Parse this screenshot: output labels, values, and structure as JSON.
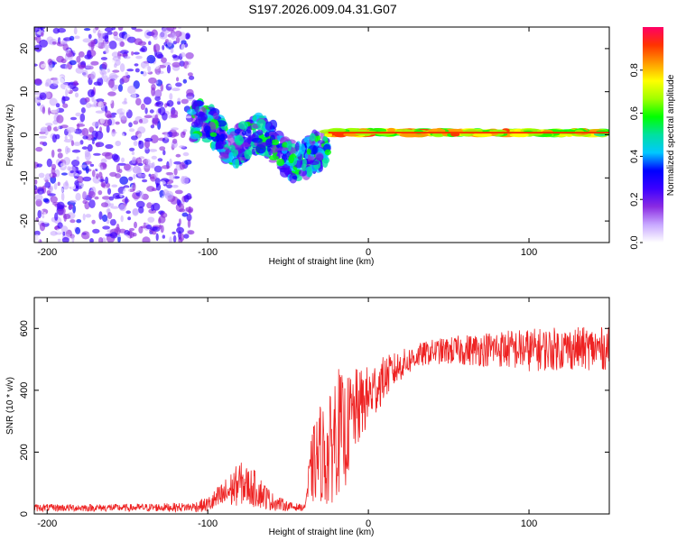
{
  "title": "S197.2026.009.04.31.G07",
  "chart_data": [
    {
      "type": "heatmap",
      "title": "S197.2026.009.04.31.G07",
      "xlabel": "Height of straight line (km)",
      "ylabel": "Frequency (Hz)",
      "xlim": [
        -208,
        150
      ],
      "ylim": [
        -25,
        25
      ],
      "xticks": [
        -200,
        -100,
        0,
        100
      ],
      "yticks": [
        -20,
        -10,
        0,
        10,
        20
      ],
      "colorbar": {
        "label": "Normalized spectral amplitude",
        "range": [
          0,
          1
        ],
        "ticks": [
          0.0,
          0.2,
          0.4,
          0.6,
          0.8
        ],
        "colors": [
          "#ffffff",
          "#c8a8ff",
          "#8a2be2",
          "#3b00ff",
          "#0000ff",
          "#00c8ff",
          "#00e0a0",
          "#00ff00",
          "#a0ff00",
          "#ffff00",
          "#ff9900",
          "#ff3300",
          "#ff0066"
        ]
      },
      "description_regions": [
        {
          "x_range": [
            -208,
            -110
          ],
          "freq_range": [
            -25,
            25
          ],
          "amplitude": 0.2,
          "pattern": "scattered noise"
        },
        {
          "x_range": [
            -110,
            -25
          ],
          "freq_range": [
            -12,
            7
          ],
          "amplitude": 0.4,
          "pattern": "clustered"
        },
        {
          "x_range": [
            -25,
            150
          ],
          "freq_range": [
            -1,
            2
          ],
          "amplitude": 0.9,
          "pattern": "narrow carrier line at ~0.5 Hz"
        }
      ]
    },
    {
      "type": "line",
      "xlabel": "Height of straight line (km)",
      "ylabel": "SNR (10 * v/v)",
      "xlim": [
        -208,
        150
      ],
      "ylim": [
        0,
        700
      ],
      "xticks": [
        -200,
        -100,
        0,
        100
      ],
      "yticks": [
        0,
        200,
        400,
        600
      ],
      "color": "#ee2222",
      "envelope": {
        "x": [
          -208,
          -150,
          -110,
          -100,
          -90,
          -80,
          -70,
          -60,
          -50,
          -40,
          -35,
          -30,
          -25,
          -20,
          -15,
          -10,
          -5,
          0,
          5,
          10,
          20,
          30,
          40,
          60,
          80,
          100,
          120,
          150
        ],
        "mean": [
          20,
          20,
          22,
          30,
          60,
          100,
          80,
          40,
          25,
          20,
          150,
          200,
          180,
          280,
          250,
          320,
          350,
          380,
          410,
          440,
          480,
          510,
          525,
          530,
          535,
          530,
          535,
          535
        ],
        "amplitude": [
          12,
          12,
          15,
          25,
          50,
          70,
          60,
          30,
          15,
          10,
          120,
          160,
          170,
          220,
          180,
          150,
          120,
          100,
          90,
          70,
          50,
          40,
          40,
          50,
          60,
          70,
          70,
          70
        ]
      }
    }
  ]
}
